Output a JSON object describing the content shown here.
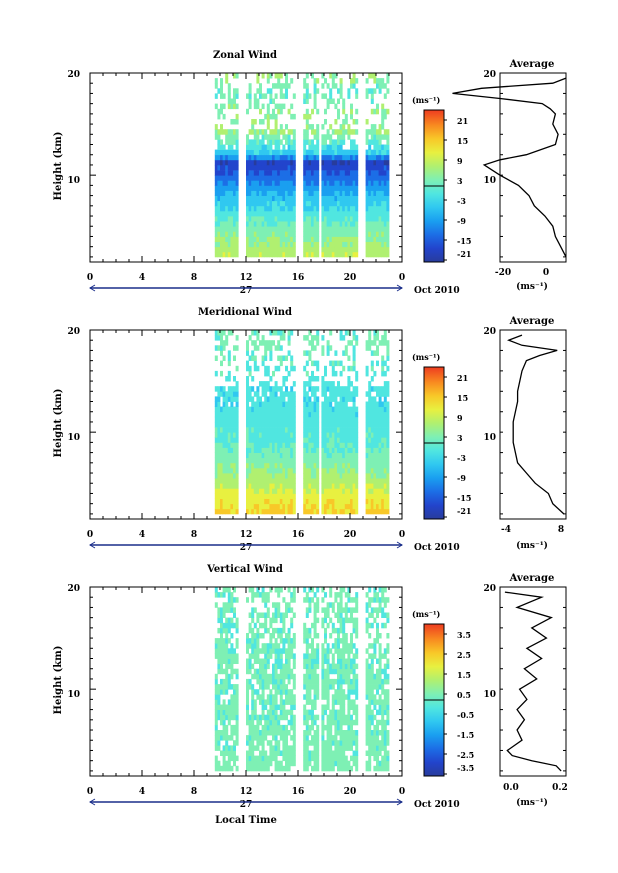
{
  "panels": [
    {
      "title": "Zonal Wind",
      "ylabel": "Height (km)",
      "yticks": [
        "20",
        "10"
      ],
      "xticks": [
        "0",
        "4",
        "8",
        "12",
        "16",
        "20",
        "0"
      ],
      "date_day": "27",
      "date_month": "Oct 2010",
      "colorbar_unit": "(ms⁻¹)",
      "colorbar_ticks": [
        "21",
        "15",
        "9",
        "3",
        "-3",
        "-9",
        "-15",
        "-21"
      ],
      "avg_title": "Average",
      "avg_yticks": [
        "20",
        "10"
      ],
      "avg_xticks": [
        "-20",
        "0"
      ],
      "avg_xlabel": "(ms⁻¹)"
    },
    {
      "title": "Meridional Wind",
      "ylabel": "Height (km)",
      "yticks": [
        "20",
        "10"
      ],
      "xticks": [
        "0",
        "4",
        "8",
        "12",
        "16",
        "20",
        "0"
      ],
      "date_day": "27",
      "date_month": "Oct 2010",
      "colorbar_unit": "(ms⁻¹)",
      "colorbar_ticks": [
        "21",
        "15",
        "9",
        "3",
        "-3",
        "-9",
        "-15",
        "-21"
      ],
      "avg_title": "Average",
      "avg_yticks": [
        "20",
        "10"
      ],
      "avg_xticks": [
        "-4",
        "8"
      ],
      "avg_xlabel": "(ms⁻¹)"
    },
    {
      "title": "Vertical Wind",
      "ylabel": "Height (km)",
      "yticks": [
        "20",
        "10"
      ],
      "xticks": [
        "0",
        "4",
        "8",
        "12",
        "16",
        "20",
        "0"
      ],
      "date_day": "27",
      "date_month": "Oct 2010",
      "colorbar_unit": "(ms⁻¹)",
      "colorbar_ticks": [
        "3.5",
        "2.5",
        "1.5",
        "0.5",
        "-0.5",
        "-1.5",
        "-2.5",
        "-3.5"
      ],
      "avg_title": "Average",
      "avg_yticks": [
        "20",
        "10"
      ],
      "avg_xticks": [
        "0.0",
        "0.2"
      ],
      "avg_xlabel": "(ms⁻¹)"
    }
  ],
  "xlabel": "Local Time",
  "palette": [
    "#283c9c",
    "#2244cc",
    "#1c6ee6",
    "#1a9ff0",
    "#30c8f0",
    "#50e6e0",
    "#7ef0b4",
    "#b0f070",
    "#e8f040",
    "#f8c828",
    "#f88a20",
    "#ee3c20"
  ],
  "chart_data": [
    {
      "type": "heatmap",
      "title": "Zonal Wind",
      "xlabel": "Local Time",
      "ylabel": "Height (km)",
      "xlim": [
        0,
        24
      ],
      "ylim": [
        1.5,
        20
      ],
      "clim": [
        -24,
        24
      ],
      "data_time_range": [
        9.6,
        22.8
      ],
      "data_gaps": [
        [
          11.2,
          11.9
        ],
        [
          15.6,
          16.2
        ],
        [
          17.4,
          17.6
        ],
        [
          20.5,
          21.1
        ]
      ],
      "profile": [
        {
          "h": 2,
          "v": 7
        },
        {
          "h": 4,
          "v": 3
        },
        {
          "h": 6,
          "v": -2
        },
        {
          "h": 8,
          "v": -8
        },
        {
          "h": 10,
          "v": -16
        },
        {
          "h": 11,
          "v": -19
        },
        {
          "h": 12,
          "v": -5
        },
        {
          "h": 14,
          "v": 4
        },
        {
          "h": 16,
          "v": 3
        },
        {
          "h": 18,
          "v": 0
        },
        {
          "h": 19.5,
          "v": 4
        }
      ],
      "average_profile": {
        "height": [
          2,
          3,
          4,
          5,
          6,
          7,
          8,
          9,
          10,
          10.5,
          11,
          11.5,
          12,
          13,
          14,
          15,
          16,
          16.5,
          17,
          17.5,
          18,
          18.5,
          19,
          19.5
        ],
        "value": [
          5,
          3,
          1,
          0,
          -3,
          -7,
          -9,
          -13,
          -20,
          -23,
          -26,
          -20,
          -10,
          1,
          2,
          0,
          1,
          -1,
          -4,
          -20,
          -38,
          -27,
          0,
          5
        ],
        "xlim": [
          -20,
          5
        ]
      }
    },
    {
      "type": "heatmap",
      "title": "Meridional Wind",
      "xlabel": "Local Time",
      "ylabel": "Height (km)",
      "xlim": [
        0,
        24
      ],
      "ylim": [
        1.5,
        20
      ],
      "clim": [
        -24,
        24
      ],
      "data_time_range": [
        9.6,
        22.8
      ],
      "data_gaps": [
        [
          11.2,
          11.9
        ],
        [
          15.6,
          16.2
        ],
        [
          17.4,
          17.6
        ],
        [
          20.5,
          21.1
        ]
      ],
      "profile": [
        {
          "h": 2,
          "v": 13
        },
        {
          "h": 3.5,
          "v": 10
        },
        {
          "h": 5,
          "v": 6
        },
        {
          "h": 7,
          "v": 2
        },
        {
          "h": 9,
          "v": -1
        },
        {
          "h": 11,
          "v": -2
        },
        {
          "h": 13,
          "v": -3
        },
        {
          "h": 15,
          "v": -2
        },
        {
          "h": 17,
          "v": 0
        },
        {
          "h": 18.5,
          "v": 2
        },
        {
          "h": 19.5,
          "v": 0
        }
      ],
      "average_profile": {
        "height": [
          2,
          3,
          4,
          5,
          6,
          7,
          8,
          9,
          10,
          11,
          12,
          13,
          14,
          15,
          16,
          17,
          17.5,
          18,
          18.5,
          19,
          19.5
        ],
        "value": [
          8.5,
          6,
          5,
          2,
          0,
          -2,
          -2.5,
          -3,
          -3,
          -3,
          -2.5,
          -2,
          -2,
          -1.5,
          -1,
          0,
          3,
          7,
          -1,
          -4,
          -1
        ],
        "xlim": [
          -6,
          9
        ]
      }
    },
    {
      "type": "heatmap",
      "title": "Vertical Wind",
      "xlabel": "Local Time",
      "ylabel": "Height (km)",
      "xlim": [
        0,
        24
      ],
      "ylim": [
        1.5,
        20
      ],
      "clim": [
        -4,
        4
      ],
      "data_time_range": [
        9.6,
        22.8
      ],
      "data_gaps": [
        [
          11.2,
          11.9
        ],
        [
          15.6,
          16.2
        ],
        [
          17.4,
          17.6
        ],
        [
          20.5,
          21.1
        ]
      ],
      "profile": [
        {
          "h": 2,
          "v": 0.2
        },
        {
          "h": 5,
          "v": 0.15
        },
        {
          "h": 8,
          "v": 0.1
        },
        {
          "h": 11,
          "v": 0.1
        },
        {
          "h": 14,
          "v": 0.1
        },
        {
          "h": 17,
          "v": 0.1
        },
        {
          "h": 19.5,
          "v": 0.1
        }
      ],
      "average_profile": {
        "height": [
          2,
          2.5,
          3,
          3.5,
          4,
          5,
          6,
          7,
          8,
          9,
          10,
          11,
          12,
          13,
          14,
          15,
          16,
          17,
          18,
          19,
          19.5
        ],
        "value": [
          0.2,
          0.18,
          0.08,
          0.0,
          -0.02,
          0.04,
          0.02,
          0.05,
          0.02,
          0.06,
          0.03,
          0.1,
          0.05,
          0.12,
          0.06,
          0.14,
          0.08,
          0.16,
          0.02,
          0.12,
          -0.03
        ],
        "xlim": [
          -0.05,
          0.22
        ]
      }
    }
  ]
}
